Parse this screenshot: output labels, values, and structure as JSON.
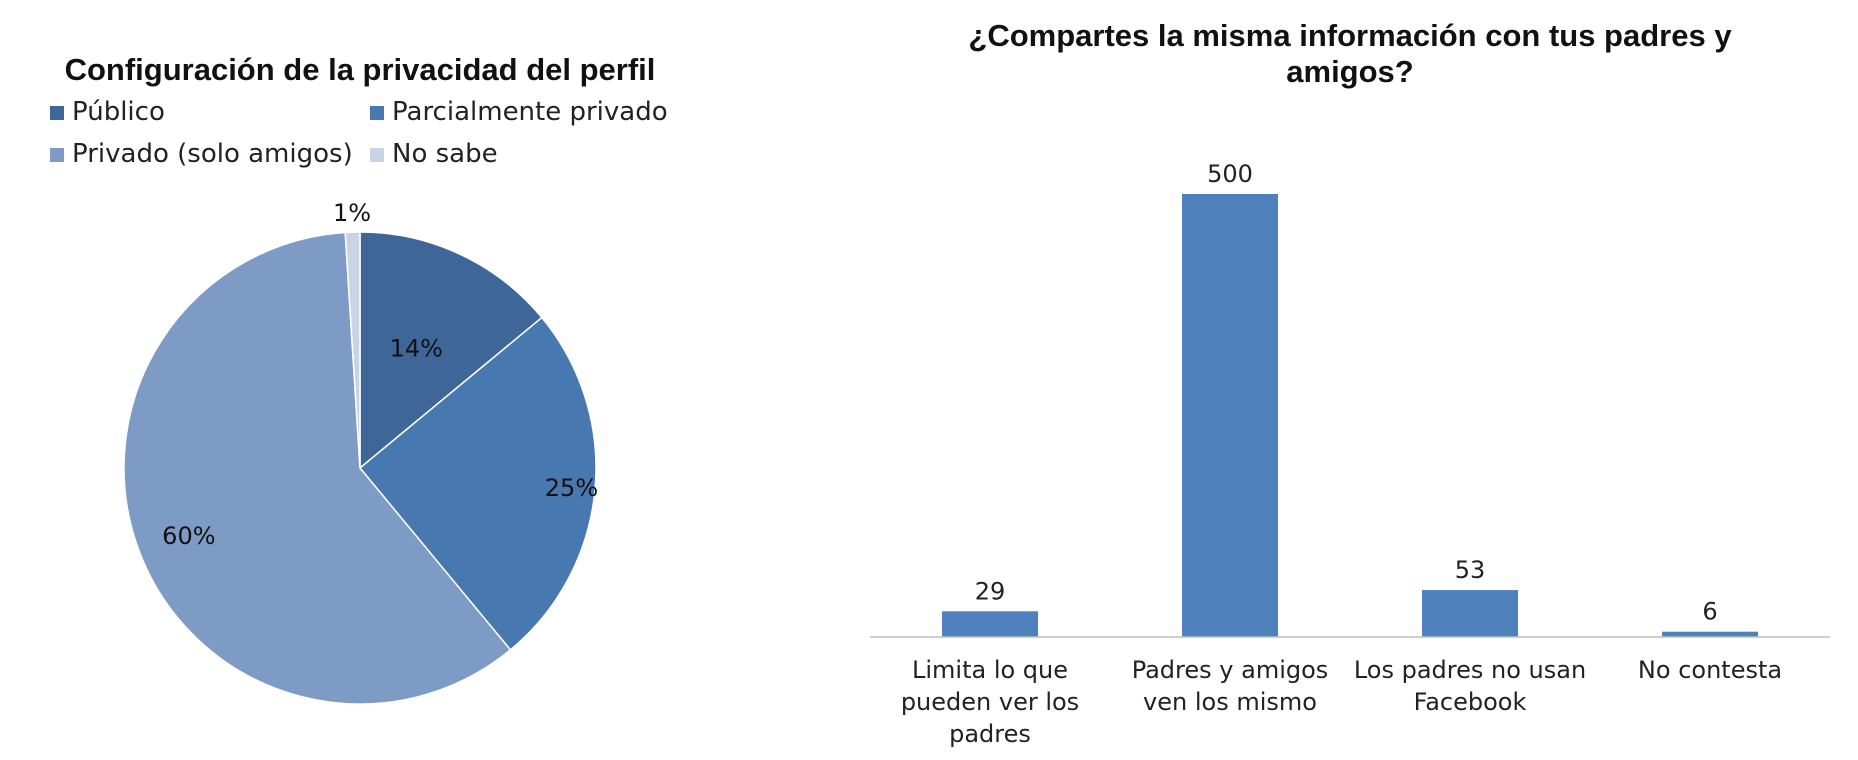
{
  "chart_data": [
    {
      "type": "pie",
      "title": "Configuración de la privacidad del perfil",
      "legend_position": "top",
      "categories": [
        "Público",
        "Parcialmente privado",
        "Privado (solo amigos)",
        "No sabe"
      ],
      "values": [
        14,
        25,
        60,
        1
      ],
      "labels": [
        "14%",
        "25%",
        "60%",
        "1%"
      ],
      "colors": [
        "#3f6698",
        "#4878b0",
        "#7e9bc6",
        "#c8d3e6"
      ]
    },
    {
      "type": "bar",
      "title": "¿Compartes la misma información con tus padres y amigos?",
      "title_lines": [
        "¿Compartes la misma información con tus padres y",
        "amigos?"
      ],
      "categories": [
        "Limita lo que pueden ver los padres",
        "Padres y amigos ven los mismo",
        "Los padres no usan Facebook",
        "No contesta"
      ],
      "category_lines": [
        [
          "Limita lo que",
          "pueden ver los",
          "padres"
        ],
        [
          "Padres y amigos",
          "ven los mismo"
        ],
        [
          "Los padres no usan",
          "Facebook"
        ],
        [
          "No contesta"
        ]
      ],
      "values": [
        29,
        500,
        53,
        6
      ],
      "ylim": [
        0,
        500
      ],
      "grid": false,
      "bar_color": "#4f81bd",
      "axis_color": "#bfbfbf"
    }
  ]
}
